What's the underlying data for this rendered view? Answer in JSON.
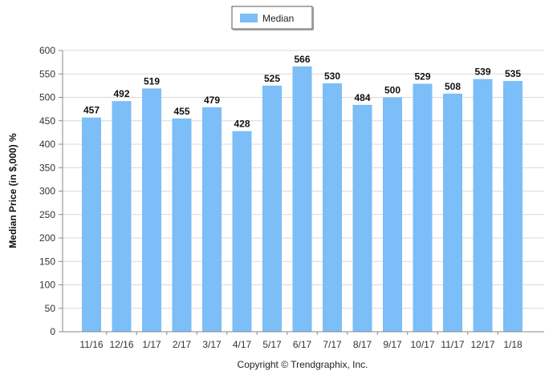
{
  "chart_data": {
    "type": "bar",
    "categories": [
      "11/16",
      "12/16",
      "1/17",
      "2/17",
      "3/17",
      "4/17",
      "5/17",
      "6/17",
      "7/17",
      "8/17",
      "9/17",
      "10/17",
      "11/17",
      "12/17",
      "1/18"
    ],
    "series": [
      {
        "name": "Median",
        "values": [
          457,
          492,
          519,
          455,
          479,
          428,
          525,
          566,
          530,
          484,
          500,
          529,
          508,
          539,
          535
        ],
        "color": "#7cbef7"
      }
    ],
    "ylabel": "Median Price (in $,000) %",
    "ylim": [
      0,
      600
    ],
    "yticks": [
      0,
      50,
      100,
      150,
      200,
      250,
      300,
      350,
      400,
      450,
      500,
      550,
      600
    ],
    "grid": true,
    "legend": "top-center",
    "data_labels": true
  },
  "footer": "Copyright © Trendgraphix, Inc."
}
